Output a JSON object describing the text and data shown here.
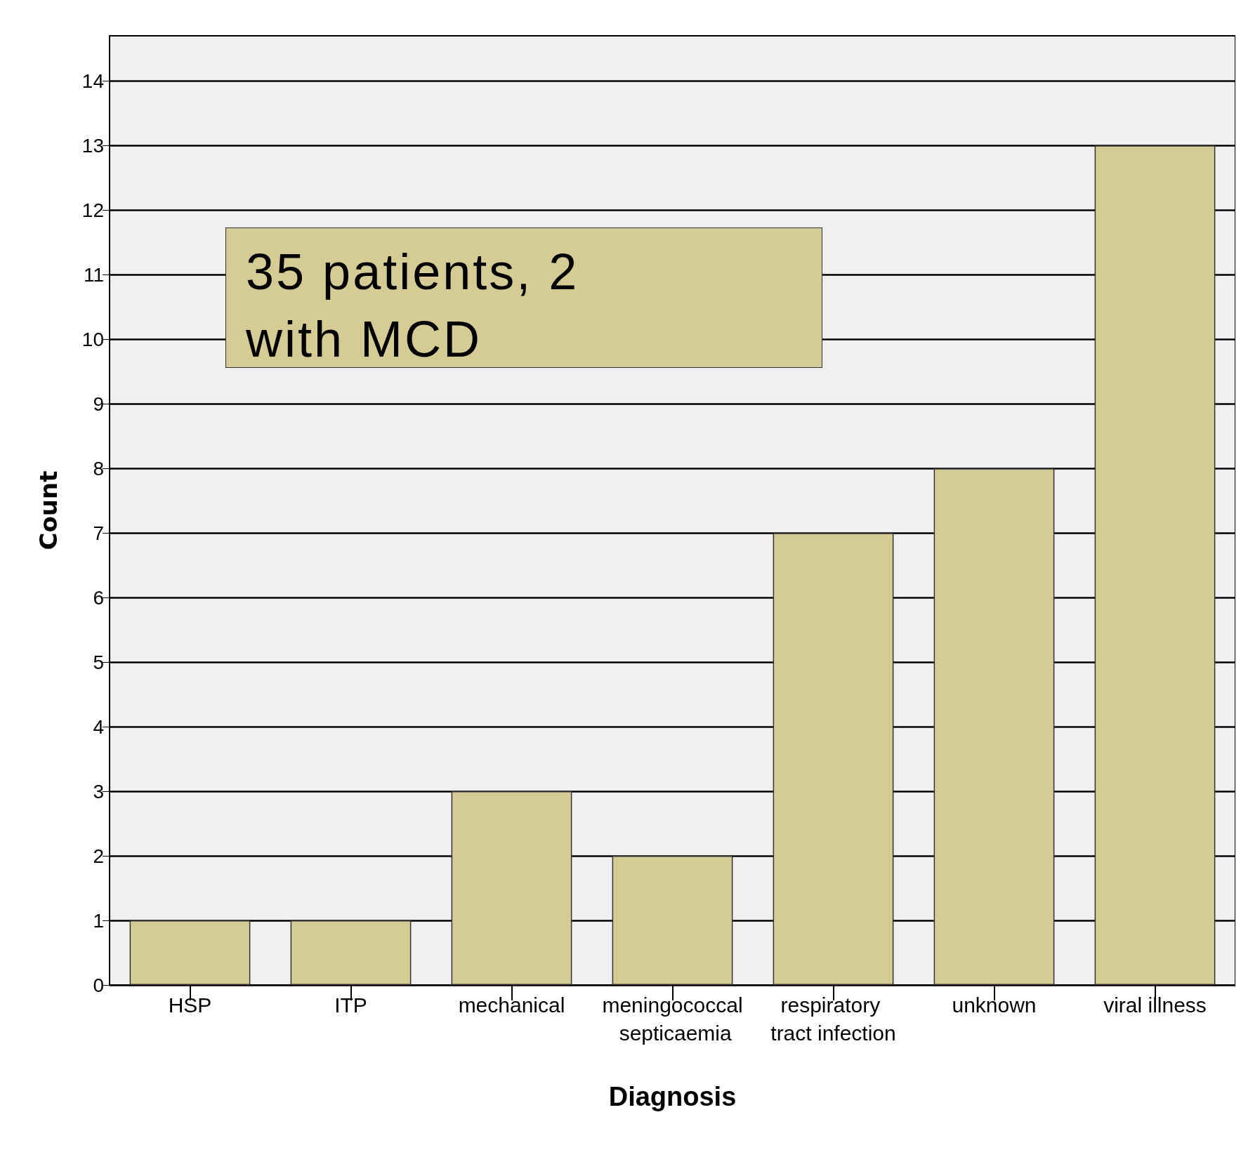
{
  "chart_data": {
    "type": "bar",
    "xlabel": "Diagnosis",
    "ylabel": "Count",
    "categories": [
      "HSP",
      "ITP",
      "mechanical",
      "meningococcal septicaemia",
      "respiratory tract infection",
      "unknown",
      "viral illness"
    ],
    "values": [
      1,
      1,
      3,
      2,
      7,
      8,
      13
    ],
    "color": "#d4cc94",
    "ylim": [
      0,
      14.7
    ],
    "yticks": [
      0,
      1,
      2,
      3,
      4,
      5,
      6,
      7,
      8,
      9,
      10,
      11,
      12,
      13,
      14
    ],
    "grid": "y",
    "annotations": [
      "35 patients, 2 with MCD"
    ]
  }
}
